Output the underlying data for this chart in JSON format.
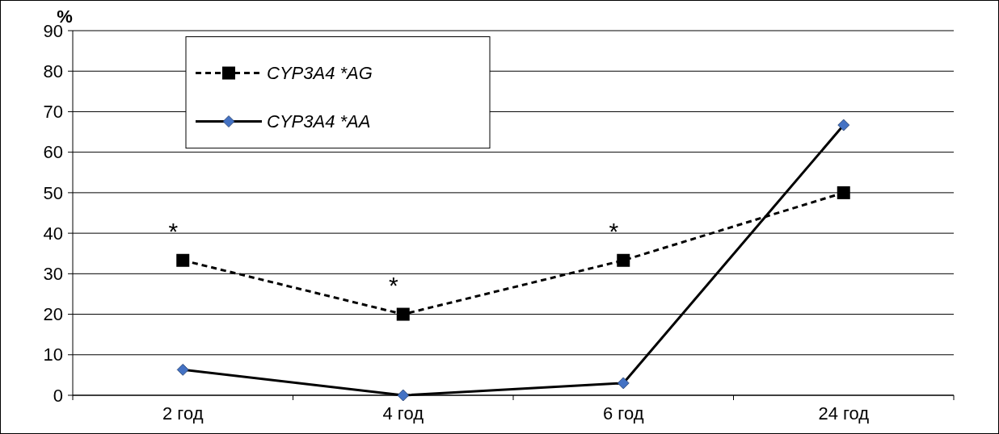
{
  "chart_data": {
    "type": "line",
    "ylabel": "%",
    "categories": [
      "2 год",
      "4 год",
      "6 год",
      "24 год"
    ],
    "series": [
      {
        "name": "CYP3A4 *AG",
        "color": "#000000",
        "marker": "square",
        "line_style": "dashed",
        "values": [
          33.3,
          20,
          33.3,
          50
        ]
      },
      {
        "name": "CYP3A4 *AA",
        "color": "#4472c4",
        "marker": "diamond",
        "line_style": "solid",
        "values": [
          6.3,
          0,
          3,
          66.7
        ]
      }
    ],
    "ylim": [
      0,
      90
    ],
    "yticks": [
      0,
      10,
      20,
      30,
      40,
      50,
      60,
      70,
      80,
      90
    ],
    "grid": "y",
    "legend": "top left",
    "annotations": [
      {
        "text": "*",
        "x": "2 год",
        "y": 33.3
      },
      {
        "text": "*",
        "x": "4 год",
        "y": 20
      },
      {
        "text": "*",
        "x": "6 год",
        "y": 33.3
      }
    ]
  }
}
